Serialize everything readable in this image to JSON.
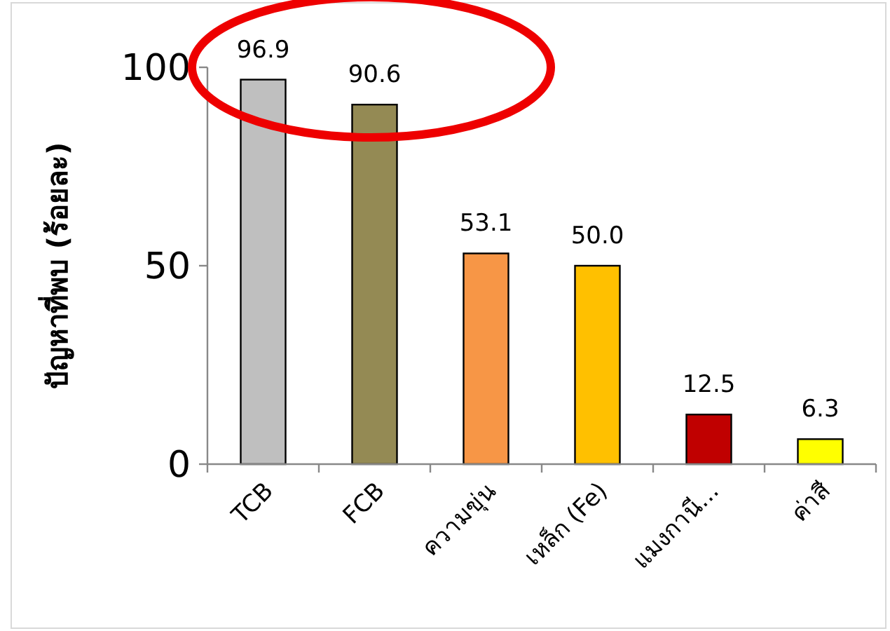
{
  "chart_data": {
    "type": "bar",
    "ylabel": "ปัญหาที่พบ (ร้อยละ)",
    "categories": [
      "TCB",
      "FCB",
      "ความขุ่น",
      "เหล็ก (Fe)",
      "แมงกานี...",
      "ค่าสี"
    ],
    "values": [
      96.9,
      90.6,
      53.1,
      50.0,
      12.5,
      6.3
    ],
    "colors": [
      "#bfbfbf",
      "#948a54",
      "#f79646",
      "#ffc000",
      "#c00000",
      "#ffff00"
    ],
    "value_labels": [
      "96.9",
      "90.6",
      "53.1",
      "50.0",
      "12.5",
      "6.3"
    ],
    "ylim": [
      0,
      100
    ],
    "yticks": [
      0,
      50,
      100
    ],
    "grid": false
  }
}
